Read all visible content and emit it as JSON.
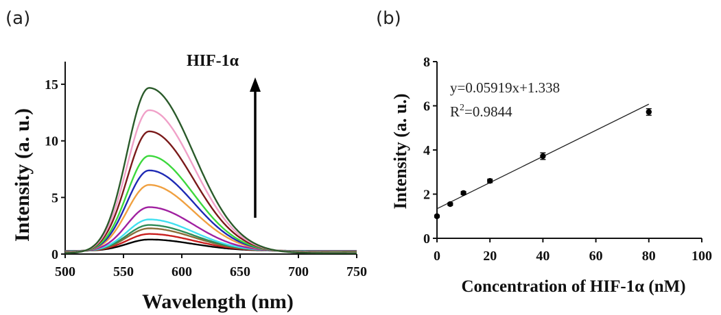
{
  "panels": {
    "a_label": "(a)",
    "b_label": "(b)"
  },
  "chart_data": [
    {
      "type": "line",
      "panel": "(a)",
      "xlabel": "Wavelength (nm)",
      "ylabel": "Intensity (a. u.)",
      "xlim": [
        500,
        750
      ],
      "ylim": [
        0,
        17
      ],
      "xticks": [
        "500",
        "550",
        "600",
        "650",
        "700",
        "750"
      ],
      "yticks": [
        "0",
        "5",
        "10",
        "15"
      ],
      "grid": false,
      "annotation": {
        "text": "HIF-1α",
        "arrow": "up"
      },
      "peak_x": 572,
      "baseline_y": 0.3,
      "series": [
        {
          "peak": 1.0,
          "color": "#000000"
        },
        {
          "peak": 1.5,
          "color": "#c81e1e"
        },
        {
          "peak": 2.0,
          "color": "#8b6d3a"
        },
        {
          "peak": 2.3,
          "color": "#2e8b57"
        },
        {
          "peak": 2.8,
          "color": "#40e0f0"
        },
        {
          "peak": 3.9,
          "color": "#a020a0"
        },
        {
          "peak": 5.9,
          "color": "#f0a040"
        },
        {
          "peak": 7.2,
          "color": "#1e2ab4"
        },
        {
          "peak": 8.5,
          "color": "#3cd83c"
        },
        {
          "peak": 10.7,
          "color": "#7a1a1a"
        },
        {
          "peak": 12.6,
          "color": "#f0a0c8"
        },
        {
          "peak": 14.6,
          "color": "#2a5a2a"
        }
      ]
    },
    {
      "type": "scatter",
      "panel": "(b)",
      "xlabel": "Concentration of HIF-1α (nM)",
      "ylabel": "Intensity (a. u.)",
      "xlim": [
        0,
        100
      ],
      "ylim": [
        0,
        8
      ],
      "xticks": [
        "0",
        "20",
        "40",
        "60",
        "80",
        "100"
      ],
      "yticks": [
        "0",
        "2",
        "4",
        "6",
        "8"
      ],
      "grid": false,
      "x": [
        0,
        5,
        10,
        20,
        40,
        80
      ],
      "y": [
        1.0,
        1.55,
        2.05,
        2.6,
        3.72,
        5.72
      ],
      "error": [
        0.05,
        0.06,
        0.07,
        0.08,
        0.15,
        0.15
      ],
      "fit": {
        "slope": 0.05919,
        "intercept": 1.338,
        "x_range": [
          0,
          80
        ]
      },
      "equation": "y=0.05919x+1.338",
      "r2_prefix": "R",
      "r2_sup": "2",
      "r2_value": "=0.9844"
    }
  ]
}
